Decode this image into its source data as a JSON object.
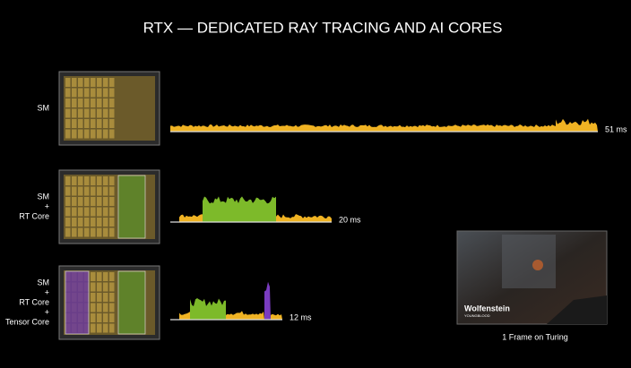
{
  "title": "RTX — DEDICATED RAY TRACING AND AI CORES",
  "rows": [
    {
      "label": [
        "SM"
      ],
      "time": "51 ms"
    },
    {
      "label": [
        "SM",
        "+",
        "RT Core"
      ],
      "time": "20 ms"
    },
    {
      "label": [
        "SM",
        "+",
        "RT Core",
        "+",
        "Tensor Core"
      ],
      "time": "12 ms"
    }
  ],
  "screenshot": {
    "logo": "Wolfenstein",
    "sublogo": "YOUNGBLOOD",
    "caption": "1 Frame on Turing"
  }
}
